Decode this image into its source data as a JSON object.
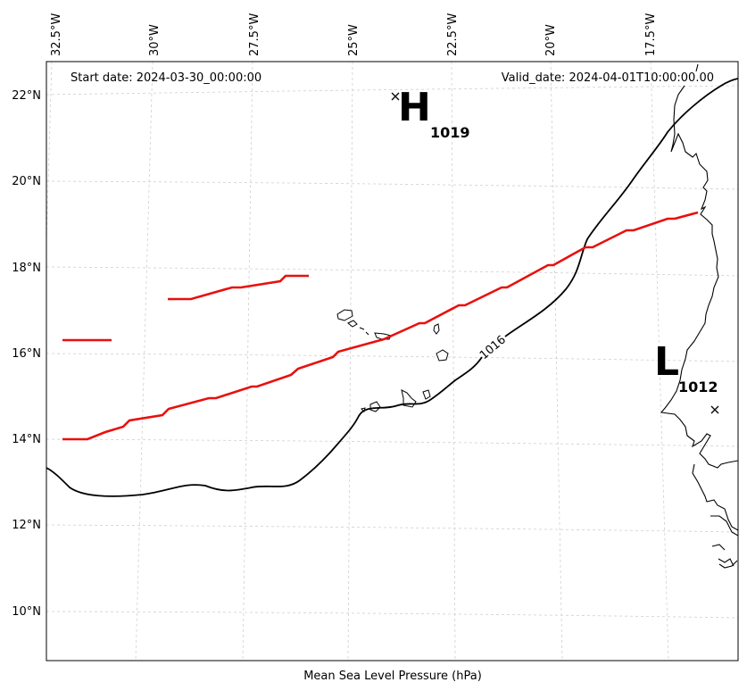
{
  "header": {
    "start_date": "Start date: 2024-03-30_00:00:00",
    "valid_date": "Valid_date: 2024-04-01T10:00:00.00"
  },
  "longitude_labels": [
    "32.5°W",
    "30°W",
    "27.5°W",
    "25°W",
    "22.5°W",
    "20°W",
    "17.5°W"
  ],
  "latitude_labels": [
    "22°N",
    "20°N",
    "18°N",
    "16°N",
    "14°N",
    "12°N",
    "10°N"
  ],
  "footer_label": "Mean Sea Level Pressure (hPa)",
  "pressure_systems": [
    {
      "letter": "H",
      "value": "1019",
      "lon": -23.8,
      "lat": 22.0
    },
    {
      "letter": "L",
      "value": "1012",
      "lon": -16.2,
      "lat": 14.7
    }
  ],
  "isobars": [
    {
      "value": "1016",
      "label": "1016"
    }
  ],
  "colors": {
    "front": "#e8100d",
    "isobar": "#000000",
    "grid": "#cfcfcf"
  }
}
